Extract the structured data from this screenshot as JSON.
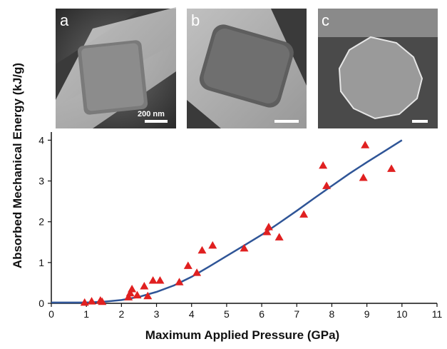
{
  "chart_data": {
    "type": "scatter",
    "xlabel": "Maximum Applied Pressure (GPa)",
    "ylabel": "Absorbed Mechanical Energy (kJ/g)",
    "xlim": [
      0,
      11
    ],
    "ylim": [
      0,
      4.2
    ],
    "x_ticks": [
      0,
      1,
      2,
      3,
      4,
      5,
      6,
      7,
      8,
      9,
      10,
      11
    ],
    "y_ticks": [
      0,
      1,
      2,
      3,
      4
    ],
    "grid": false,
    "series": [
      {
        "marker": "triangle",
        "color": "#e02020",
        "points": [
          [
            0.95,
            0.02
          ],
          [
            1.15,
            0.05
          ],
          [
            1.4,
            0.07
          ],
          [
            1.45,
            0.04
          ],
          [
            2.2,
            0.15
          ],
          [
            2.25,
            0.25
          ],
          [
            2.3,
            0.35
          ],
          [
            2.45,
            0.2
          ],
          [
            2.65,
            0.42
          ],
          [
            2.75,
            0.18
          ],
          [
            2.9,
            0.56
          ],
          [
            3.1,
            0.56
          ],
          [
            3.65,
            0.52
          ],
          [
            3.9,
            0.92
          ],
          [
            4.15,
            0.75
          ],
          [
            4.3,
            1.3
          ],
          [
            4.6,
            1.42
          ],
          [
            5.5,
            1.35
          ],
          [
            6.15,
            1.75
          ],
          [
            6.2,
            1.87
          ],
          [
            6.5,
            1.62
          ],
          [
            7.2,
            2.18
          ],
          [
            7.75,
            3.38
          ],
          [
            7.85,
            2.88
          ],
          [
            8.9,
            3.08
          ],
          [
            8.95,
            3.88
          ],
          [
            9.7,
            3.3
          ]
        ]
      },
      {
        "marker": "line",
        "color": "#2f5597",
        "points": [
          [
            0,
            0.02
          ],
          [
            1,
            0.02
          ],
          [
            1.5,
            0.04
          ],
          [
            2,
            0.08
          ],
          [
            2.5,
            0.16
          ],
          [
            3,
            0.28
          ],
          [
            3.5,
            0.44
          ],
          [
            4,
            0.65
          ],
          [
            4.5,
            0.9
          ],
          [
            5,
            1.16
          ],
          [
            5.5,
            1.42
          ],
          [
            6,
            1.68
          ],
          [
            6.5,
            1.97
          ],
          [
            7,
            2.27
          ],
          [
            7.5,
            2.58
          ],
          [
            8,
            2.88
          ],
          [
            8.5,
            3.18
          ],
          [
            9,
            3.46
          ],
          [
            9.5,
            3.73
          ],
          [
            10,
            4.0
          ]
        ]
      }
    ]
  },
  "insets": {
    "a": {
      "letter": "a",
      "scale_label": "200 nm"
    },
    "b": {
      "letter": "b"
    },
    "c": {
      "letter": "c"
    }
  },
  "colors": {
    "marker": "#e02020",
    "fit_line": "#2f5597",
    "axis": "#111111"
  }
}
